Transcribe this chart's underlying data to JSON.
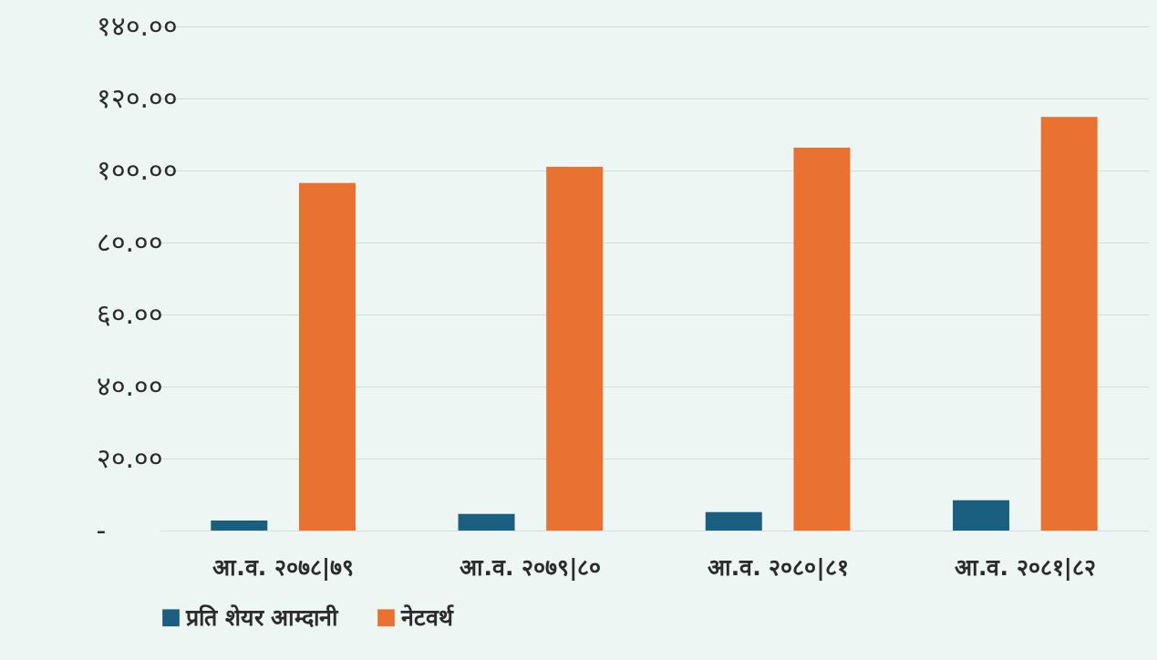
{
  "chart_data": {
    "type": "bar",
    "categories": [
      "आ.व. २०७८|७९",
      "आ.व. २०७९|८०",
      "आ.व. २०८०|८१",
      "आ.व. २०८१|८२"
    ],
    "series": [
      {
        "name": "प्रति शेयर आम्दानी",
        "color": "#1a5f80",
        "values": [
          2.8,
          4.6,
          5.1,
          8.4
        ]
      },
      {
        "name": "नेटवर्थ",
        "color": "#e97132",
        "values": [
          96.5,
          101.0,
          106.3,
          114.9
        ]
      }
    ],
    "ylim": [
      0,
      140
    ],
    "yticks": [
      {
        "value": 0,
        "label": "-"
      },
      {
        "value": 20,
        "label": "२०.००"
      },
      {
        "value": 40,
        "label": "४०.००"
      },
      {
        "value": 60,
        "label": "६०.००"
      },
      {
        "value": 80,
        "label": "८०.००"
      },
      {
        "value": 100,
        "label": "१००.००"
      },
      {
        "value": 120,
        "label": "१२०.००"
      },
      {
        "value": 140,
        "label": "१४०.००"
      }
    ],
    "grid": "y",
    "legend": "bottom"
  }
}
